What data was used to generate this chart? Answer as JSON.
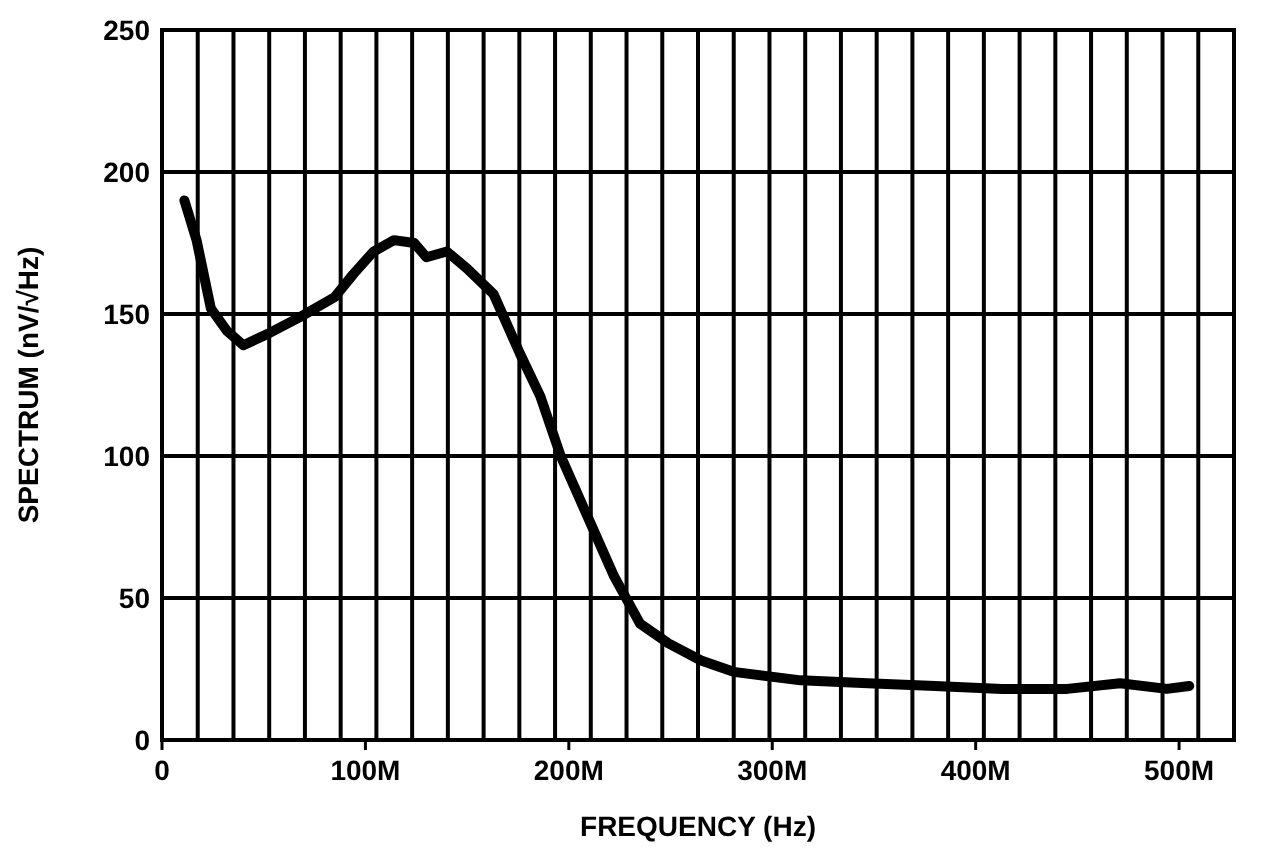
{
  "chart_data": {
    "type": "line",
    "xlabel": "FREQUENCY (Hz)",
    "ylabel": "SPECTRUM (nV/√Hz)",
    "xlim": [
      0,
      527000000
    ],
    "ylim": [
      0,
      250
    ],
    "xticks": [
      0,
      {
        "value": 100000000,
        "label": "100M"
      },
      {
        "value": 200000000,
        "label": "200M"
      },
      {
        "value": 300000000,
        "label": "300M"
      },
      {
        "value": 400000000,
        "label": "400M"
      },
      {
        "value": 500000000,
        "label": "500M"
      }
    ],
    "yticks": [
      0,
      50,
      100,
      150,
      200,
      250
    ],
    "grid": true,
    "line_style": "solid",
    "series": [
      {
        "color": "#000000",
        "x": [
          11000000,
          17000000,
          24000000,
          32000000,
          40000000,
          52000000,
          68000000,
          85000000,
          94000000,
          104000000,
          114000000,
          124000000,
          130000000,
          140000000,
          150000000,
          163000000,
          176000000,
          186000000,
          196000000,
          209000000,
          222000000,
          235000000,
          249000000,
          265000000,
          281000000,
          314000000,
          347000000,
          380000000,
          413000000,
          445000000,
          471000000,
          494000000,
          505000000
        ],
        "values": [
          190,
          176,
          152,
          144,
          139,
          143,
          149,
          156,
          164,
          172,
          176,
          175,
          170,
          172,
          166,
          157,
          136,
          121,
          100,
          79,
          58,
          41,
          34,
          28,
          24,
          21,
          20,
          19,
          18,
          18,
          20,
          18,
          19
        ]
      }
    ]
  }
}
